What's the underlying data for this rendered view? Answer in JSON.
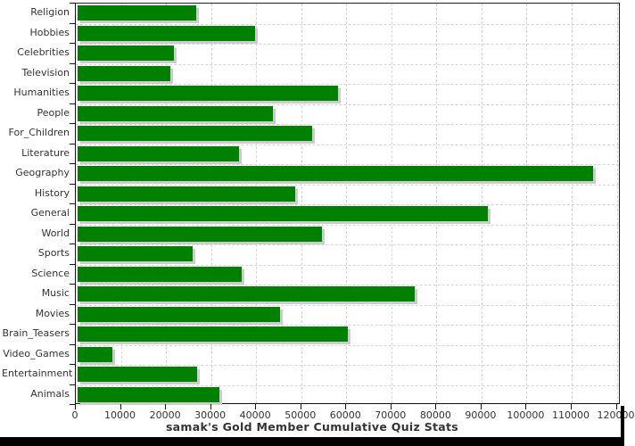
{
  "title": "samak's Gold Member Cumulative Quiz Stats",
  "colors": {
    "bar": "#008000",
    "bar_shadow": "#cccccc",
    "grid": "#d6d6d6",
    "axis": "#1a1a1a",
    "text": "#333333",
    "bottom_band": "#000000"
  },
  "chart_data": {
    "type": "bar",
    "orientation": "horizontal",
    "title": "samak's Gold Member Cumulative Quiz Stats",
    "xlabel": "",
    "ylabel": "",
    "xlim": [
      0,
      120000
    ],
    "x_ticks": [
      0,
      10000,
      20000,
      30000,
      40000,
      50000,
      60000,
      70000,
      80000,
      90000,
      100000,
      110000,
      120000
    ],
    "grid": "dashed-both",
    "legend": "none",
    "categories": [
      "Religion",
      "Hobbies",
      "Celebrities",
      "Television",
      "Humanities",
      "People",
      "For_Children",
      "Literature",
      "Geography",
      "History",
      "General",
      "World",
      "Sports",
      "Science",
      "Music",
      "Movies",
      "Brain_Teasers",
      "Video_Games",
      "Entertainment",
      "Animals"
    ],
    "values": [
      26400,
      39400,
      21300,
      20600,
      57700,
      43300,
      52100,
      35800,
      114400,
      48200,
      91000,
      54300,
      25600,
      36500,
      74700,
      44900,
      60000,
      7800,
      26600,
      31400
    ]
  }
}
